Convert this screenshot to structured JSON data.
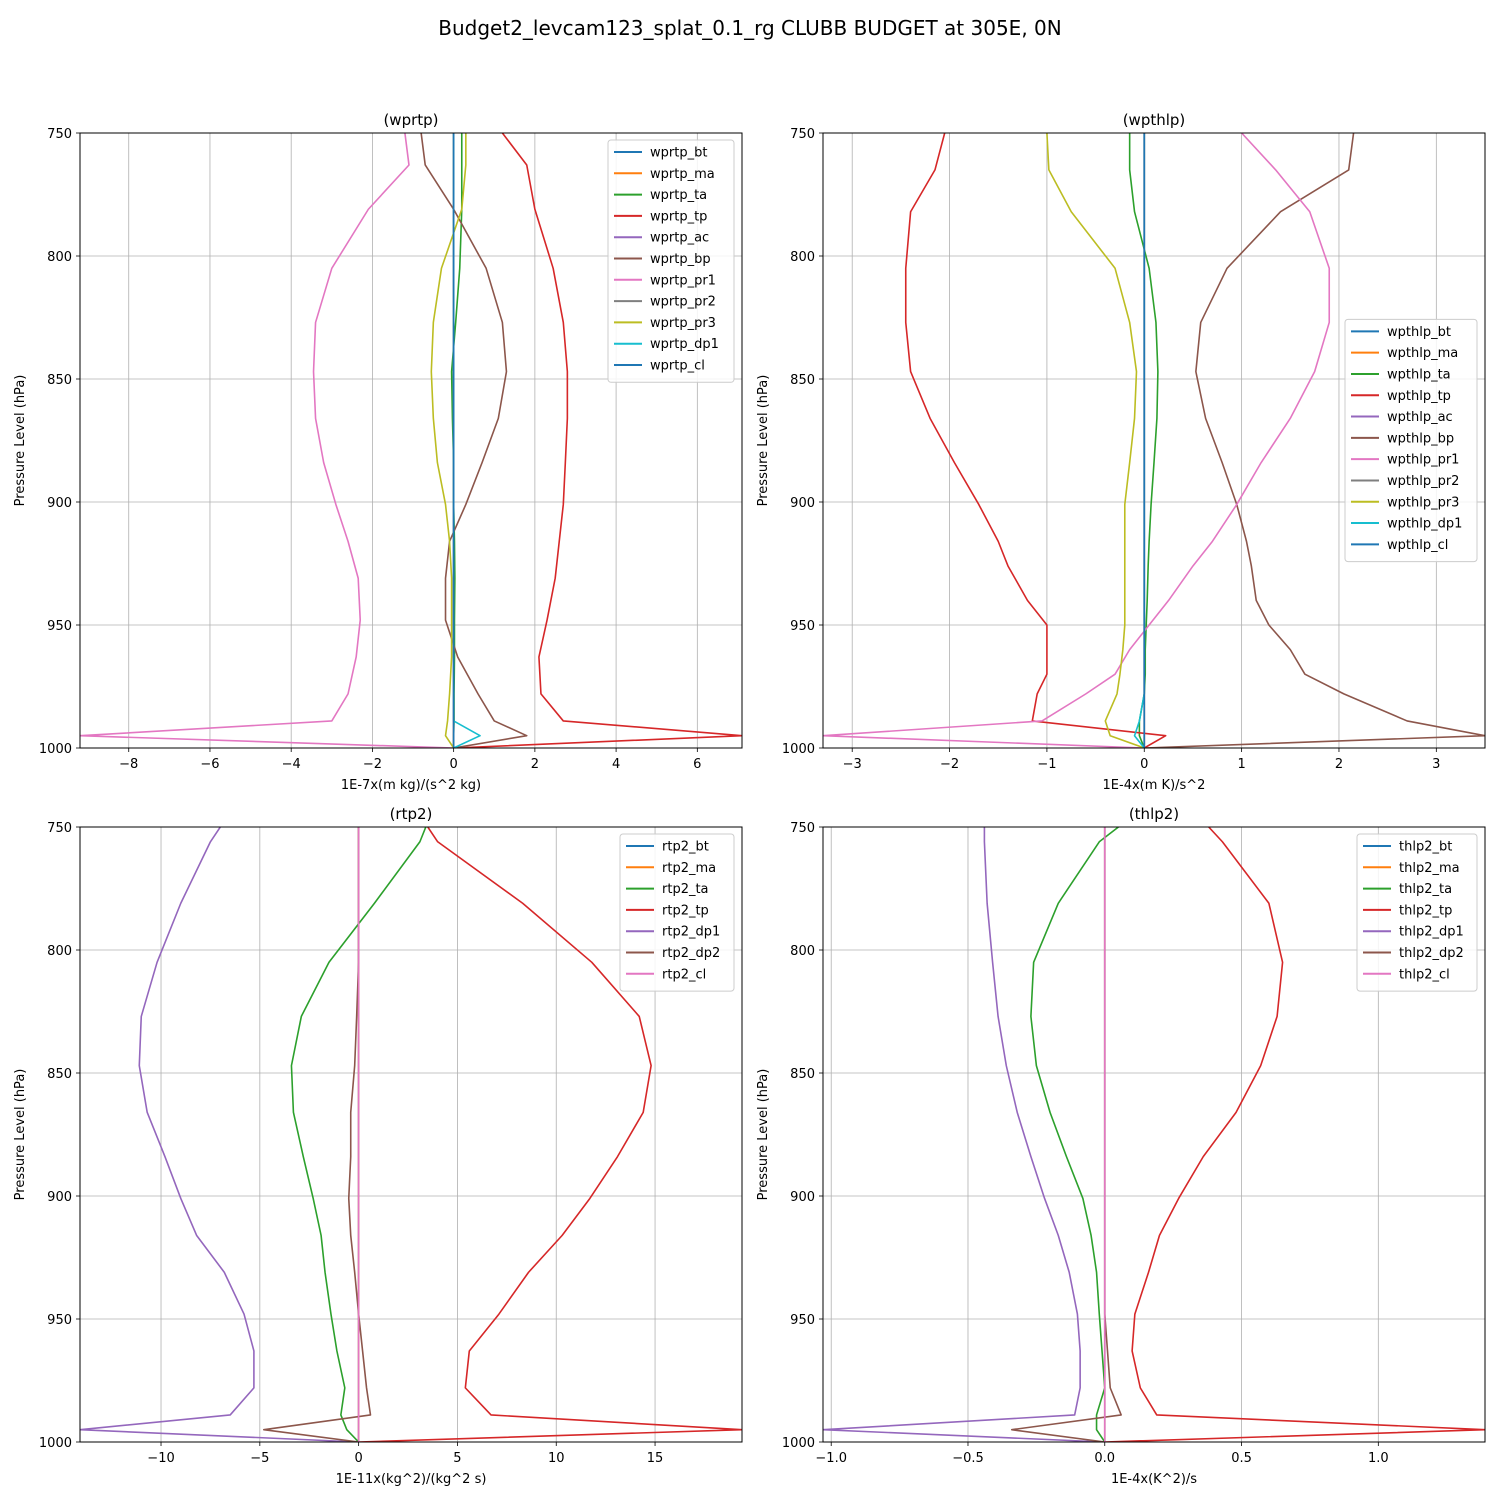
{
  "title": "Budget2_levcam123_splat_0.1_rg CLUBB BUDGET at 305E, 0N",
  "chart_data": [
    {
      "type": "line",
      "title": "(wprtp)",
      "xlabel": "1E-7x(m kg)/(s^2 kg)",
      "ylabel": "Pressure Level (hPa)",
      "xlim": [
        -9.2,
        7.1
      ],
      "ylim": [
        1000,
        750
      ],
      "xticks": [
        -8,
        -6,
        -4,
        -2,
        0,
        2,
        4,
        6
      ],
      "yticks": [
        750,
        800,
        850,
        900,
        950,
        1000
      ],
      "grid": true,
      "legend_position": "upper-right",
      "y": [
        750,
        763,
        781,
        805,
        827,
        847,
        866,
        884,
        901,
        916,
        931,
        948,
        963,
        978,
        989,
        995,
        1000
      ],
      "series": [
        {
          "name": "wprtp_bt",
          "color": "#1f77b4",
          "values": [
            0,
            0,
            0,
            0,
            0,
            0,
            0,
            0,
            0,
            0,
            0,
            0,
            0,
            0,
            0,
            0,
            0
          ]
        },
        {
          "name": "wprtp_ma",
          "color": "#ff7f0e",
          "values": [
            0,
            0,
            0,
            0,
            0,
            0,
            0,
            0,
            0,
            0,
            0,
            0,
            0,
            0,
            0,
            0,
            0
          ]
        },
        {
          "name": "wprtp_ta",
          "color": "#2ca02c",
          "values": [
            0.2,
            0.2,
            0.2,
            0.15,
            0.05,
            -0.05,
            -0.03,
            0,
            0,
            0.02,
            0.03,
            0.02,
            0.02,
            0.01,
            0.01,
            0,
            0
          ]
        },
        {
          "name": "wprtp_tp",
          "color": "#d62728",
          "values": [
            1.2,
            1.8,
            2.0,
            2.45,
            2.7,
            2.8,
            2.8,
            2.75,
            2.7,
            2.6,
            2.5,
            2.3,
            2.1,
            2.15,
            2.7,
            7.1,
            0
          ]
        },
        {
          "name": "wprtp_ac",
          "color": "#9467bd",
          "values": [
            0,
            0,
            0,
            0,
            0,
            0,
            0,
            0,
            0,
            0,
            0,
            0,
            0,
            0,
            0,
            0,
            0
          ]
        },
        {
          "name": "wprtp_bp",
          "color": "#8c564b",
          "values": [
            -0.8,
            -0.7,
            0,
            0.8,
            1.2,
            1.3,
            1.1,
            0.7,
            0.3,
            -0.1,
            -0.2,
            -0.2,
            0.1,
            0.6,
            1.0,
            1.8,
            0
          ]
        },
        {
          "name": "wprtp_pr1",
          "color": "#e377c2",
          "values": [
            -1.2,
            -1.1,
            -2.1,
            -3.0,
            -3.4,
            -3.45,
            -3.4,
            -3.2,
            -2.9,
            -2.6,
            -2.35,
            -2.3,
            -2.4,
            -2.6,
            -3.0,
            -9.2,
            0
          ]
        },
        {
          "name": "wprtp_pr2",
          "color": "#7f7f7f",
          "values": [
            0,
            0,
            0,
            0,
            0,
            0,
            0,
            0,
            0,
            0,
            0,
            0,
            0,
            0,
            0,
            0,
            0
          ]
        },
        {
          "name": "wprtp_pr3",
          "color": "#bcbd22",
          "values": [
            0.3,
            0.3,
            0.2,
            -0.3,
            -0.5,
            -0.55,
            -0.5,
            -0.4,
            -0.2,
            -0.1,
            -0.05,
            -0.05,
            -0.05,
            -0.1,
            -0.15,
            -0.2,
            0
          ]
        },
        {
          "name": "wprtp_dp1",
          "color": "#17becf",
          "values": [
            0,
            0,
            0,
            0,
            0,
            0,
            0,
            0,
            0,
            0,
            0,
            0,
            0,
            0,
            0,
            0.65,
            0
          ]
        },
        {
          "name": "wprtp_cl",
          "color": "#1f77b4",
          "values": [
            0,
            0,
            0,
            0,
            0,
            0,
            0,
            0,
            0,
            0,
            0,
            0,
            0,
            0,
            0,
            0,
            0
          ]
        }
      ]
    },
    {
      "type": "line",
      "title": "(wpthlp)",
      "xlabel": "1E-4x(m K)/s^2",
      "ylabel": "Pressure Level (hPa)",
      "xlim": [
        -3.3,
        3.5
      ],
      "ylim": [
        1000,
        750
      ],
      "xticks": [
        -3,
        -2,
        -1,
        0,
        1,
        2,
        3
      ],
      "yticks": [
        750,
        800,
        850,
        900,
        950,
        1000
      ],
      "grid": true,
      "legend_position": "center-right",
      "y": [
        750,
        765,
        782,
        805,
        827,
        847,
        866,
        884,
        901,
        916,
        926,
        940,
        950,
        960,
        970,
        978,
        989,
        995,
        1000
      ],
      "series": [
        {
          "name": "wpthlp_bt",
          "color": "#1f77b4",
          "values": [
            0,
            0,
            0,
            0,
            0,
            0,
            0,
            0,
            0,
            0,
            0,
            0,
            0,
            0,
            0,
            0,
            0,
            0,
            0
          ]
        },
        {
          "name": "wpthlp_ma",
          "color": "#ff7f0e",
          "values": [
            0,
            0,
            0,
            0,
            0,
            0,
            0,
            0,
            0,
            0,
            0,
            0,
            0,
            0,
            0,
            0,
            0,
            0,
            0
          ]
        },
        {
          "name": "wpthlp_ta",
          "color": "#2ca02c",
          "values": [
            -0.15,
            -0.15,
            -0.1,
            0.05,
            0.12,
            0.14,
            0.13,
            0.1,
            0.07,
            0.05,
            0.04,
            0.03,
            0.02,
            0.01,
            0.01,
            0,
            -0.05,
            -0.05,
            0
          ]
        },
        {
          "name": "wpthlp_tp",
          "color": "#d62728",
          "values": [
            -2.05,
            -2.15,
            -2.4,
            -2.45,
            -2.45,
            -2.4,
            -2.2,
            -1.95,
            -1.7,
            -1.5,
            -1.4,
            -1.2,
            -1.0,
            -1.0,
            -1.0,
            -1.1,
            -1.15,
            0.22,
            0
          ]
        },
        {
          "name": "wpthlp_ac",
          "color": "#9467bd",
          "values": [
            0,
            0,
            0,
            0,
            0,
            0,
            0,
            0,
            0,
            0,
            0,
            0,
            0,
            0,
            0,
            0,
            0,
            0,
            0
          ]
        },
        {
          "name": "wpthlp_bp",
          "color": "#8c564b",
          "values": [
            2.15,
            2.1,
            1.4,
            0.85,
            0.58,
            0.53,
            0.63,
            0.8,
            0.95,
            1.05,
            1.1,
            1.15,
            1.28,
            1.5,
            1.65,
            2.05,
            2.7,
            3.5,
            0
          ]
        },
        {
          "name": "wpthlp_pr1",
          "color": "#e377c2",
          "values": [
            1.0,
            1.35,
            1.7,
            1.9,
            1.9,
            1.75,
            1.5,
            1.2,
            0.95,
            0.7,
            0.5,
            0.25,
            0.05,
            -0.15,
            -0.3,
            -0.6,
            -1.05,
            -3.3,
            0
          ]
        },
        {
          "name": "wpthlp_pr2",
          "color": "#7f7f7f",
          "values": [
            0,
            0,
            0,
            0,
            0,
            0,
            0,
            0,
            0,
            0,
            0,
            0,
            0,
            0,
            0,
            0,
            0,
            0,
            0
          ]
        },
        {
          "name": "wpthlp_pr3",
          "color": "#bcbd22",
          "values": [
            -1.0,
            -0.98,
            -0.75,
            -0.3,
            -0.15,
            -0.08,
            -0.1,
            -0.15,
            -0.2,
            -0.2,
            -0.2,
            -0.2,
            -0.2,
            -0.22,
            -0.25,
            -0.28,
            -0.4,
            -0.35,
            0
          ]
        },
        {
          "name": "wpthlp_dp1",
          "color": "#17becf",
          "values": [
            0,
            0,
            0,
            0,
            0,
            0,
            0,
            0,
            0,
            0,
            0,
            0,
            0,
            0,
            0,
            0,
            -0.05,
            -0.1,
            0
          ]
        },
        {
          "name": "wpthlp_cl",
          "color": "#1f77b4",
          "values": [
            0,
            0,
            0,
            0,
            0,
            0,
            0,
            0,
            0,
            0,
            0,
            0,
            0,
            0,
            0,
            0,
            0,
            0,
            0
          ]
        }
      ]
    },
    {
      "type": "line",
      "title": "(rtp2)",
      "xlabel": "1E-11x(kg^2)/(kg^2 s)",
      "ylabel": "Pressure Level (hPa)",
      "xlim": [
        -14.1,
        19.4
      ],
      "ylim": [
        1000,
        750
      ],
      "xticks": [
        -10,
        -5,
        0,
        5,
        10,
        15
      ],
      "yticks": [
        750,
        800,
        850,
        900,
        950,
        1000
      ],
      "grid": true,
      "legend_position": "upper-right",
      "y": [
        750,
        756,
        781,
        805,
        827,
        847,
        866,
        884,
        901,
        916,
        931,
        948,
        963,
        978,
        989,
        995,
        1000
      ],
      "series": [
        {
          "name": "rtp2_bt",
          "color": "#1f77b4",
          "values": [
            0,
            0,
            0,
            0,
            0,
            0,
            0,
            0,
            0,
            0,
            0,
            0,
            0,
            0,
            0,
            0,
            0
          ]
        },
        {
          "name": "rtp2_ma",
          "color": "#ff7f0e",
          "values": [
            0,
            0,
            0,
            0,
            0,
            0,
            0,
            0,
            0,
            0,
            0,
            0,
            0,
            0,
            0,
            0,
            0
          ]
        },
        {
          "name": "rtp2_ta",
          "color": "#2ca02c",
          "values": [
            3.4,
            3.1,
            0.8,
            -1.5,
            -2.9,
            -3.4,
            -3.3,
            -2.8,
            -2.3,
            -1.9,
            -1.7,
            -1.4,
            -1.1,
            -0.7,
            -0.9,
            -0.6,
            0
          ]
        },
        {
          "name": "rtp2_tp",
          "color": "#d62728",
          "values": [
            3.5,
            4.0,
            8.3,
            11.8,
            14.2,
            14.8,
            14.4,
            13.1,
            11.7,
            10.3,
            8.6,
            7.1,
            5.6,
            5.4,
            6.7,
            19.4,
            0
          ]
        },
        {
          "name": "rtp2_dp1",
          "color": "#9467bd",
          "values": [
            -7.0,
            -7.5,
            -9.0,
            -10.2,
            -11.0,
            -11.1,
            -10.7,
            -9.8,
            -9.0,
            -8.2,
            -6.8,
            -5.8,
            -5.3,
            -5.3,
            -6.5,
            -14.1,
            0
          ]
        },
        {
          "name": "rtp2_dp2",
          "color": "#8c564b",
          "values": [
            0,
            0,
            0,
            0,
            -0.1,
            -0.2,
            -0.4,
            -0.4,
            -0.5,
            -0.4,
            -0.2,
            0,
            0.2,
            0.4,
            0.6,
            -4.8,
            0
          ]
        },
        {
          "name": "rtp2_cl",
          "color": "#e377c2",
          "values": [
            0,
            0,
            0,
            0,
            0,
            0,
            0,
            0,
            0,
            0,
            0,
            0,
            0,
            0,
            0,
            0,
            0
          ]
        }
      ]
    },
    {
      "type": "line",
      "title": "(thlp2)",
      "xlabel": "1E-4x(K^2)/s",
      "ylabel": "Pressure Level (hPa)",
      "xlim": [
        -1.03,
        1.39
      ],
      "ylim": [
        1000,
        750
      ],
      "xticks": [
        -1.0,
        -0.5,
        0.0,
        0.5,
        1.0
      ],
      "yticks": [
        750,
        800,
        850,
        900,
        950,
        1000
      ],
      "grid": true,
      "legend_position": "upper-right",
      "y": [
        750,
        756,
        781,
        805,
        827,
        847,
        866,
        884,
        901,
        916,
        931,
        948,
        963,
        978,
        989,
        995,
        1000
      ],
      "series": [
        {
          "name": "thlp2_bt",
          "color": "#1f77b4",
          "values": [
            0,
            0,
            0,
            0,
            0,
            0,
            0,
            0,
            0,
            0,
            0,
            0,
            0,
            0,
            0,
            0,
            0
          ]
        },
        {
          "name": "thlp2_ma",
          "color": "#ff7f0e",
          "values": [
            0,
            0,
            0,
            0,
            0,
            0,
            0,
            0,
            0,
            0,
            0,
            0,
            0,
            0,
            0,
            0,
            0
          ]
        },
        {
          "name": "thlp2_ta",
          "color": "#2ca02c",
          "values": [
            0.05,
            -0.02,
            -0.17,
            -0.26,
            -0.27,
            -0.25,
            -0.2,
            -0.14,
            -0.08,
            -0.05,
            -0.03,
            -0.02,
            -0.01,
            0,
            -0.03,
            -0.03,
            0
          ]
        },
        {
          "name": "thlp2_tp",
          "color": "#d62728",
          "values": [
            0.38,
            0.43,
            0.6,
            0.65,
            0.63,
            0.57,
            0.48,
            0.36,
            0.27,
            0.2,
            0.16,
            0.11,
            0.1,
            0.13,
            0.19,
            1.39,
            0
          ]
        },
        {
          "name": "thlp2_dp1",
          "color": "#9467bd",
          "values": [
            -0.44,
            -0.44,
            -0.43,
            -0.41,
            -0.39,
            -0.36,
            -0.32,
            -0.27,
            -0.22,
            -0.17,
            -0.13,
            -0.1,
            -0.09,
            -0.09,
            -0.11,
            -1.03,
            0
          ]
        },
        {
          "name": "thlp2_dp2",
          "color": "#8c564b",
          "values": [
            0,
            0,
            0,
            0,
            0,
            0,
            0,
            0,
            0,
            0,
            0,
            0,
            0.01,
            0.02,
            0.06,
            -0.34,
            0
          ]
        },
        {
          "name": "thlp2_cl",
          "color": "#e377c2",
          "values": [
            0,
            0,
            0,
            0,
            0,
            0,
            0,
            0,
            0,
            0,
            0,
            0,
            0,
            0,
            0,
            0,
            0
          ]
        }
      ]
    }
  ]
}
